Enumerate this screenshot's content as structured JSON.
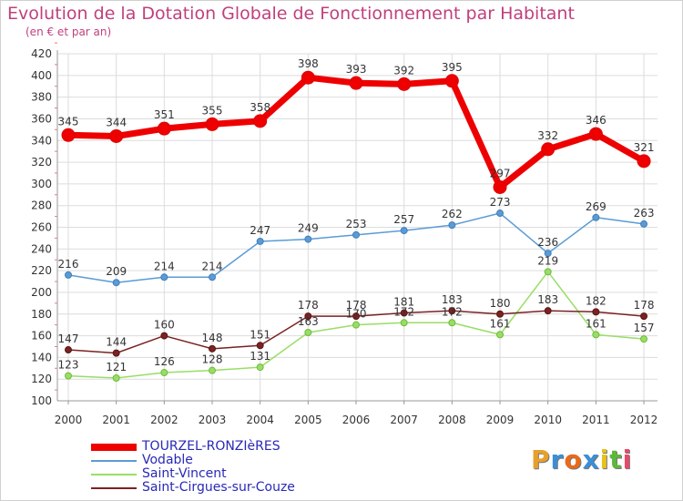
{
  "title": "Evolution de la Dotation Globale de Fonctionnement par Habitant",
  "subtitle": "(en € et par an)",
  "logo": {
    "text": "Proxiti",
    "colors": [
      "#e8a02c",
      "#3b8fd6",
      "#e86a1c",
      "#3b8fd6",
      "#e8c21c",
      "#5bb83a",
      "#e84a6a"
    ]
  },
  "chart_data": {
    "type": "line",
    "categories": [
      "2000",
      "2001",
      "2002",
      "2003",
      "2004",
      "2005",
      "2006",
      "2007",
      "2008",
      "2009",
      "2010",
      "2011",
      "2012"
    ],
    "ylim": [
      100,
      420
    ],
    "yticks": [
      100,
      120,
      140,
      160,
      180,
      200,
      220,
      240,
      260,
      280,
      300,
      320,
      340,
      360,
      380,
      400,
      420
    ],
    "grid": true,
    "legend_position": "bottom-left",
    "series": [
      {
        "name": "TOURZEL-RONZIèRES",
        "color": "#ee0000",
        "width": 7,
        "marker": 7,
        "values": [
          345,
          344,
          351,
          355,
          358,
          398,
          393,
          392,
          395,
          297,
          332,
          346,
          321
        ]
      },
      {
        "name": "Vodable",
        "color": "#5b9bd5",
        "width": 1.5,
        "marker": 3.5,
        "values": [
          216,
          209,
          214,
          214,
          247,
          249,
          253,
          257,
          262,
          273,
          236,
          269,
          263
        ]
      },
      {
        "name": "Saint-Vincent",
        "color": "#99dd66",
        "width": 1.5,
        "marker": 3.5,
        "values": [
          123,
          121,
          126,
          128,
          131,
          163,
          170,
          172,
          172,
          161,
          219,
          161,
          157
        ]
      },
      {
        "name": "Saint-Cirgues-sur-Couze",
        "color": "#7b2222",
        "width": 1.5,
        "marker": 3.5,
        "values": [
          147,
          144,
          160,
          148,
          151,
          178,
          178,
          181,
          183,
          180,
          183,
          182,
          178
        ]
      }
    ]
  }
}
